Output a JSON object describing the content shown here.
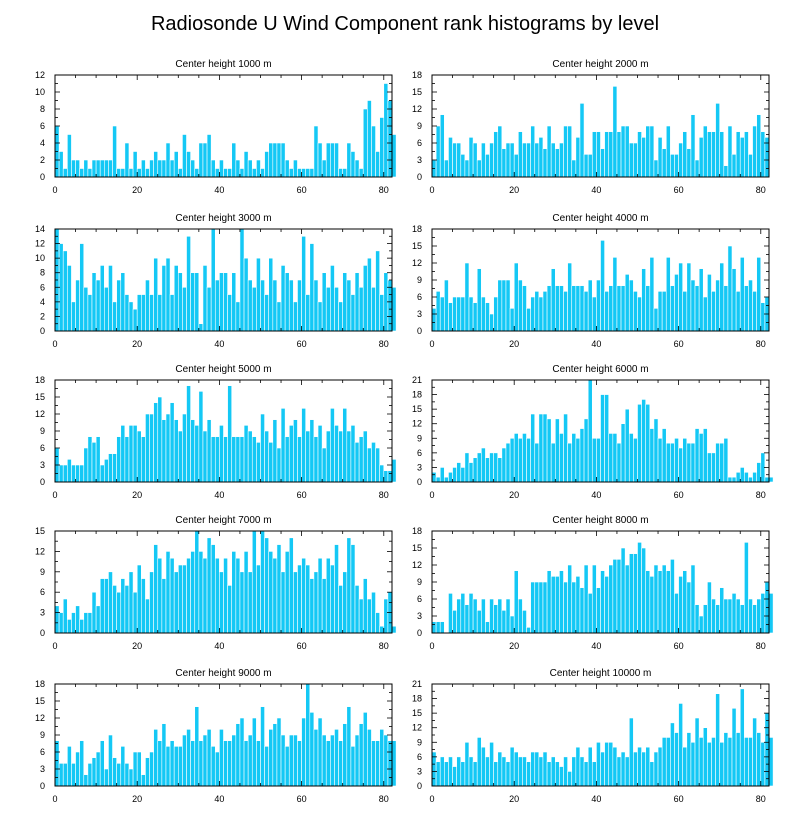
{
  "title": "Radiosonde U Wind Component rank histograms by level",
  "chart_data": [
    {
      "type": "bar",
      "title": "Center height 1000 m",
      "xlim": [
        0,
        82
      ],
      "xticks": [
        0,
        20,
        40,
        60,
        80
      ],
      "ylim": [
        0,
        12
      ],
      "yticks": [
        0,
        2,
        4,
        6,
        8,
        10,
        12
      ],
      "values": [
        6,
        3,
        1,
        5,
        2,
        2,
        1,
        2,
        1,
        2,
        2,
        2,
        2,
        2,
        6,
        1,
        1,
        4,
        1,
        3,
        1,
        2,
        1,
        2,
        3,
        2,
        2,
        4,
        2,
        3,
        1,
        5,
        3,
        2,
        1,
        4,
        4,
        5,
        2,
        1,
        2,
        1,
        1,
        4,
        2,
        1,
        3,
        2,
        1,
        2,
        1,
        3,
        4,
        4,
        4,
        4,
        2,
        1,
        2,
        1,
        1,
        1,
        1,
        6,
        4,
        2,
        4,
        4,
        4,
        1,
        1,
        4,
        3,
        2,
        1,
        8,
        9,
        6,
        3,
        7,
        11,
        9,
        5
      ]
    },
    {
      "type": "bar",
      "title": "Center height 2000 m",
      "xlim": [
        0,
        82
      ],
      "xticks": [
        0,
        20,
        40,
        60,
        80
      ],
      "ylim": [
        0,
        18
      ],
      "yticks": [
        0,
        3,
        6,
        9,
        12,
        15,
        18
      ],
      "values": [
        3,
        9,
        11,
        3,
        7,
        6,
        6,
        4,
        3,
        7,
        6,
        3,
        6,
        4,
        6,
        8,
        9,
        5,
        6,
        6,
        4,
        8,
        6,
        6,
        9,
        6,
        7,
        5,
        9,
        6,
        5,
        6,
        9,
        9,
        3,
        7,
        13,
        4,
        4,
        8,
        8,
        5,
        8,
        8,
        16,
        8,
        9,
        9,
        6,
        6,
        8,
        7,
        9,
        9,
        3,
        7,
        5,
        9,
        4,
        4,
        6,
        8,
        5,
        11,
        3,
        7,
        9,
        8,
        8,
        13,
        8,
        2,
        9,
        4,
        8,
        7,
        8,
        4,
        9,
        11,
        8,
        7
      ]
    },
    {
      "type": "bar",
      "title": "Center height 3000 m",
      "xlim": [
        0,
        82
      ],
      "xticks": [
        0,
        20,
        40,
        60,
        80
      ],
      "ylim": [
        0,
        14
      ],
      "yticks": [
        0,
        2,
        4,
        6,
        8,
        10,
        12,
        14
      ],
      "values": [
        14,
        12,
        11,
        9,
        4,
        7,
        12,
        6,
        5,
        8,
        7,
        9,
        6,
        9,
        4,
        7,
        8,
        5,
        4,
        3,
        5,
        5,
        7,
        5,
        10,
        5,
        9,
        10,
        5,
        9,
        8,
        6,
        13,
        8,
        8,
        1,
        9,
        6,
        14,
        7,
        8,
        8,
        5,
        8,
        4,
        14,
        10,
        7,
        6,
        10,
        7,
        5,
        10,
        7,
        4,
        9,
        8,
        7,
        4,
        7,
        13,
        5,
        12,
        7,
        4,
        8,
        6,
        9,
        6,
        4,
        8,
        7,
        5,
        8,
        6,
        9,
        10,
        6,
        11,
        5,
        8,
        7,
        6
      ]
    },
    {
      "type": "bar",
      "title": "Center height 4000 m",
      "xlim": [
        0,
        82
      ],
      "xticks": [
        0,
        20,
        40,
        60,
        80
      ],
      "ylim": [
        0,
        18
      ],
      "yticks": [
        0,
        3,
        6,
        9,
        12,
        15,
        18
      ],
      "values": [
        4,
        7,
        6,
        9,
        5,
        6,
        6,
        6,
        12,
        6,
        5,
        11,
        6,
        5,
        3,
        6,
        9,
        9,
        9,
        4,
        12,
        9,
        8,
        4,
        6,
        7,
        6,
        7,
        8,
        11,
        8,
        8,
        7,
        12,
        8,
        8,
        8,
        7,
        9,
        6,
        9,
        16,
        7,
        8,
        13,
        8,
        8,
        10,
        9,
        7,
        6,
        11,
        8,
        13,
        4,
        7,
        7,
        13,
        8,
        10,
        12,
        7,
        12,
        9,
        8,
        11,
        6,
        10,
        7,
        9,
        12,
        8,
        15,
        11,
        7,
        13,
        8,
        9,
        7,
        13,
        5,
        6
      ]
    },
    {
      "type": "bar",
      "title": "Center height 5000 m",
      "xlim": [
        0,
        82
      ],
      "xticks": [
        0,
        20,
        40,
        60,
        80
      ],
      "ylim": [
        0,
        18
      ],
      "yticks": [
        0,
        3,
        6,
        9,
        12,
        15,
        18
      ],
      "values": [
        6,
        3,
        3,
        4,
        3,
        3,
        3,
        6,
        8,
        7,
        8,
        3,
        4,
        5,
        5,
        8,
        10,
        8,
        10,
        10,
        9,
        8,
        12,
        12,
        14,
        15,
        11,
        12,
        14,
        11,
        9,
        12,
        17,
        11,
        10,
        16,
        9,
        11,
        8,
        8,
        10,
        8,
        17,
        8,
        8,
        8,
        10,
        9,
        8,
        7,
        12,
        9,
        7,
        11,
        6,
        13,
        8,
        10,
        11,
        8,
        13,
        9,
        11,
        8,
        10,
        6,
        9,
        13,
        10,
        9,
        13,
        9,
        10,
        7,
        8,
        9,
        6,
        7,
        6,
        3,
        2,
        2,
        4
      ]
    },
    {
      "type": "bar",
      "title": "Center height 6000 m",
      "xlim": [
        0,
        82
      ],
      "xticks": [
        0,
        20,
        40,
        60,
        80
      ],
      "ylim": [
        0,
        21
      ],
      "yticks": [
        0,
        3,
        6,
        9,
        12,
        15,
        18,
        21
      ],
      "values": [
        2,
        1,
        3,
        1,
        2,
        3,
        4,
        3,
        6,
        4,
        5,
        6,
        7,
        5,
        6,
        6,
        5,
        7,
        8,
        9,
        10,
        9,
        10,
        9,
        14,
        8,
        14,
        14,
        13,
        8,
        13,
        10,
        14,
        8,
        10,
        9,
        11,
        13,
        21,
        9,
        9,
        18,
        18,
        10,
        10,
        8,
        12,
        15,
        10,
        9,
        16,
        17,
        16,
        11,
        13,
        9,
        11,
        8,
        8,
        9,
        7,
        9,
        8,
        8,
        11,
        10,
        11,
        6,
        6,
        8,
        8,
        9,
        1,
        1,
        2,
        3,
        2,
        1,
        2,
        4,
        6,
        1,
        1
      ]
    },
    {
      "type": "bar",
      "title": "Center height 7000 m",
      "xlim": [
        0,
        82
      ],
      "xticks": [
        0,
        20,
        40,
        60,
        80
      ],
      "ylim": [
        0,
        15
      ],
      "yticks": [
        0,
        3,
        6,
        9,
        12,
        15
      ],
      "values": [
        4,
        3,
        5,
        2,
        3,
        4,
        2,
        3,
        3,
        6,
        4,
        8,
        8,
        9,
        7,
        6,
        8,
        7,
        9,
        6,
        10,
        8,
        5,
        9,
        13,
        11,
        8,
        12,
        11,
        9,
        10,
        10,
        11,
        12,
        15,
        12,
        11,
        14,
        13,
        11,
        9,
        11,
        7,
        12,
        11,
        9,
        12,
        9,
        15,
        10,
        15,
        14,
        12,
        11,
        13,
        9,
        12,
        14,
        9,
        10,
        11,
        10,
        8,
        9,
        11,
        8,
        11,
        10,
        13,
        7,
        9,
        14,
        13,
        7,
        5,
        8,
        5,
        6,
        3,
        1,
        5,
        6,
        1
      ]
    },
    {
      "type": "bar",
      "title": "Center height 8000 m",
      "xlim": [
        0,
        82
      ],
      "xticks": [
        0,
        20,
        40,
        60,
        80
      ],
      "ylim": [
        0,
        18
      ],
      "yticks": [
        0,
        3,
        6,
        9,
        12,
        15,
        18
      ],
      "values": [
        2,
        2,
        2,
        0,
        7,
        4,
        6,
        7,
        5,
        7,
        6,
        4,
        6,
        2,
        6,
        5,
        6,
        4,
        6,
        3,
        11,
        6,
        4,
        1,
        9,
        9,
        9,
        9,
        11,
        10,
        10,
        11,
        9,
        12,
        9,
        10,
        8,
        12,
        7,
        12,
        8,
        11,
        10,
        12,
        13,
        13,
        15,
        12,
        14,
        14,
        16,
        15,
        11,
        10,
        12,
        11,
        12,
        11,
        13,
        7,
        10,
        11,
        9,
        12,
        5,
        3,
        5,
        9,
        6,
        5,
        8,
        6,
        6,
        7,
        6,
        5,
        16,
        6,
        5,
        6,
        7,
        9,
        7
      ]
    },
    {
      "type": "bar",
      "title": "Center height 9000 m",
      "xlim": [
        0,
        82
      ],
      "xticks": [
        0,
        20,
        40,
        60,
        80
      ],
      "ylim": [
        0,
        18
      ],
      "yticks": [
        0,
        3,
        6,
        9,
        12,
        15,
        18
      ],
      "values": [
        8,
        4,
        4,
        7,
        4,
        6,
        8,
        2,
        4,
        5,
        6,
        8,
        3,
        9,
        5,
        4,
        7,
        4,
        3,
        6,
        6,
        2,
        5,
        6,
        10,
        8,
        11,
        7,
        8,
        7,
        7,
        9,
        10,
        8,
        14,
        8,
        9,
        10,
        7,
        6,
        10,
        8,
        8,
        9,
        11,
        12,
        8,
        9,
        12,
        8,
        14,
        7,
        10,
        11,
        12,
        9,
        7,
        9,
        9,
        8,
        12,
        18,
        13,
        10,
        12,
        9,
        8,
        9,
        10,
        8,
        11,
        14,
        7,
        9,
        11,
        13,
        10,
        8,
        8,
        10,
        9,
        8,
        8
      ]
    },
    {
      "type": "bar",
      "title": "Center height 10000 m",
      "xlim": [
        0,
        82
      ],
      "xticks": [
        0,
        20,
        40,
        60,
        80
      ],
      "ylim": [
        0,
        21
      ],
      "yticks": [
        0,
        3,
        6,
        9,
        12,
        15,
        18,
        21
      ],
      "values": [
        7,
        5,
        6,
        5,
        6,
        4,
        6,
        5,
        9,
        6,
        5,
        10,
        8,
        6,
        9,
        5,
        7,
        6,
        5,
        8,
        7,
        6,
        6,
        5,
        7,
        7,
        6,
        7,
        5,
        6,
        5,
        4,
        6,
        3,
        6,
        8,
        6,
        5,
        8,
        5,
        9,
        7,
        9,
        9,
        8,
        6,
        7,
        6,
        14,
        7,
        8,
        7,
        8,
        5,
        7,
        8,
        10,
        10,
        13,
        11,
        17,
        8,
        11,
        9,
        14,
        10,
        12,
        9,
        10,
        19,
        9,
        11,
        10,
        16,
        11,
        20,
        10,
        10,
        14,
        11,
        9,
        15,
        10
      ]
    }
  ]
}
